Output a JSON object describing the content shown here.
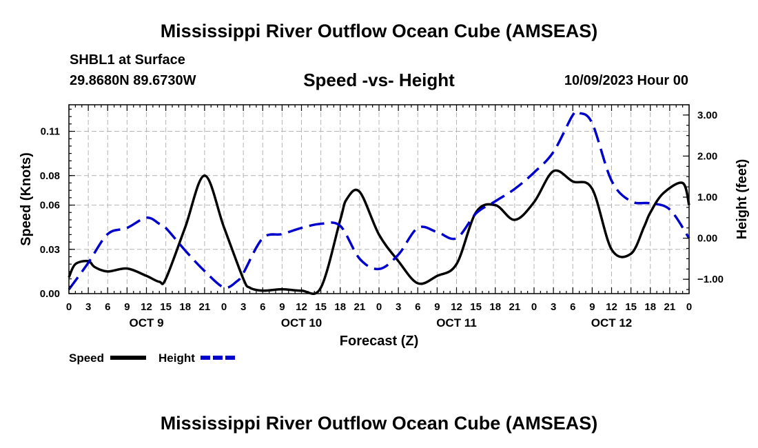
{
  "header": {
    "title": "Mississippi River Outflow Ocean Cube (AMSEAS)",
    "station": "SHBL1 at Surface",
    "coordinates": "29.8680N  89.6730W",
    "subtitle": "Speed -vs- Height",
    "timestamp": "10/09/2023 Hour 00"
  },
  "footer": {
    "title": "Mississippi River Outflow Ocean Cube (AMSEAS)"
  },
  "chart_data": {
    "type": "line",
    "title": "Speed -vs- Height",
    "xlabel": "Forecast (Z)",
    "ylabel": "Speed (Knots)",
    "y2label": "Height (feet)",
    "xlim": [
      0,
      96
    ],
    "ylim": [
      0,
      0.128
    ],
    "y2lim": [
      -1.35,
      3.25
    ],
    "grid": true,
    "legend_position": "bottom-left",
    "x_tick_labels": [
      "0",
      "3",
      "6",
      "9",
      "12",
      "15",
      "18",
      "21",
      "0",
      "3",
      "6",
      "9",
      "12",
      "15",
      "18",
      "21",
      "0",
      "3",
      "6",
      "9",
      "12",
      "15",
      "18",
      "21",
      "0",
      "3",
      "6",
      "9",
      "12",
      "15",
      "18",
      "21",
      "0"
    ],
    "day_labels": [
      {
        "label": "OCT 9",
        "hour": 12
      },
      {
        "label": "OCT 10",
        "hour": 36
      },
      {
        "label": "OCT 11",
        "hour": 60
      },
      {
        "label": "OCT 12",
        "hour": 84
      }
    ],
    "y_ticks": [
      {
        "value": 0.0,
        "label": "0.00"
      },
      {
        "value": 0.03,
        "label": "0.03"
      },
      {
        "value": 0.06,
        "label": "0.06"
      },
      {
        "value": 0.08,
        "label": "0.08"
      },
      {
        "value": 0.11,
        "label": "0.11"
      }
    ],
    "y2_ticks": [
      {
        "value": -1.0,
        "label": "−1.00"
      },
      {
        "value": 0.0,
        "label": "0.00"
      },
      {
        "value": 1.0,
        "label": "1.00"
      },
      {
        "value": 2.0,
        "label": "2.00"
      },
      {
        "value": 3.0,
        "label": "3.00"
      }
    ],
    "series": [
      {
        "name": "Speed",
        "axis": "left",
        "color": "#000000",
        "dash": "solid",
        "x": [
          0,
          1,
          3,
          4,
          6,
          9,
          12,
          14,
          15,
          18,
          21,
          24,
          27,
          28,
          30,
          33,
          36,
          39,
          42,
          43,
          45,
          48,
          51,
          54,
          57,
          60,
          63,
          66,
          69,
          72,
          75,
          78,
          81,
          84,
          87,
          89,
          90,
          92,
          95,
          96
        ],
        "y": [
          0.011,
          0.02,
          0.022,
          0.018,
          0.015,
          0.017,
          0.012,
          0.008,
          0.01,
          0.045,
          0.08,
          0.045,
          0.01,
          0.004,
          0.002,
          0.003,
          0.002,
          0.004,
          0.05,
          0.064,
          0.069,
          0.04,
          0.022,
          0.007,
          0.012,
          0.02,
          0.055,
          0.06,
          0.05,
          0.062,
          0.083,
          0.076,
          0.071,
          0.03,
          0.027,
          0.045,
          0.055,
          0.068,
          0.075,
          0.06
        ]
      },
      {
        "name": "Height",
        "axis": "right",
        "color": "#0000cc",
        "dash": "dashed",
        "x": [
          0,
          3,
          6,
          9,
          12,
          14,
          15,
          18,
          21,
          24,
          26,
          27,
          30,
          33,
          36,
          39,
          42,
          45,
          48,
          51,
          54,
          57,
          60,
          63,
          66,
          69,
          72,
          75,
          78,
          79,
          81,
          84,
          87,
          90,
          93,
          96
        ],
        "y": [
          -1.25,
          -0.6,
          0.1,
          0.25,
          0.5,
          0.35,
          0.25,
          -0.3,
          -0.8,
          -1.2,
          -1.05,
          -0.85,
          0.0,
          0.1,
          0.25,
          0.35,
          0.3,
          -0.5,
          -0.75,
          -0.4,
          0.25,
          0.15,
          0.0,
          0.6,
          0.9,
          1.2,
          1.6,
          2.1,
          3.0,
          3.05,
          2.8,
          1.4,
          0.9,
          0.85,
          0.7,
          0.0
        ]
      }
    ]
  },
  "legend": {
    "items": [
      {
        "label": "Speed",
        "color": "#000000",
        "dash": "solid"
      },
      {
        "label": "Height",
        "color": "#0000cc",
        "dash": "dashed"
      }
    ]
  }
}
